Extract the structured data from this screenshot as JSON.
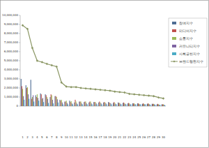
{
  "chart_data": {
    "type": "bar",
    "categories": [
      "1",
      "2",
      "3",
      "4",
      "5",
      "6",
      "7",
      "8",
      "9",
      "10",
      "11",
      "12",
      "13",
      "14",
      "15",
      "16",
      "17",
      "18",
      "19",
      "20",
      "21",
      "22",
      "23",
      "24",
      "25",
      "26",
      "27",
      "28",
      "29",
      "30"
    ],
    "series": [
      {
        "name": "참여지수",
        "type": "bar",
        "color": "#4f6d94",
        "values": [
          3000000,
          2300000,
          2900000,
          1200000,
          1400000,
          1300000,
          1000000,
          1100000,
          700000,
          500000,
          600000,
          400000,
          500000,
          450000,
          400000,
          450000,
          400000,
          400000,
          450000,
          350000,
          400000,
          350000,
          300000,
          300000,
          300000,
          250000,
          250000,
          250000,
          200000,
          200000
        ]
      },
      {
        "name": "미디어지수",
        "type": "bar",
        "color": "#c0504d",
        "values": [
          2200000,
          2000000,
          800000,
          1000000,
          1300000,
          1200000,
          1300000,
          1100000,
          600000,
          500000,
          450000,
          700000,
          500000,
          500000,
          500000,
          450000,
          500000,
          450000,
          400000,
          450000,
          350000,
          400000,
          350000,
          300000,
          300000,
          300000,
          300000,
          250000,
          250000,
          200000
        ]
      },
      {
        "name": "소통지수",
        "type": "bar",
        "color": "#9bbb59",
        "values": [
          1900000,
          2100000,
          1000000,
          1300000,
          800000,
          1000000,
          1200000,
          1000000,
          700000,
          600000,
          550000,
          500000,
          500000,
          500000,
          500000,
          450000,
          400000,
          400000,
          350000,
          350000,
          350000,
          300000,
          300000,
          300000,
          250000,
          250000,
          250000,
          250000,
          200000,
          200000
        ]
      },
      {
        "name": "커뮤니티지수",
        "type": "bar",
        "color": "#8064a2",
        "values": [
          1100000,
          1300000,
          1200000,
          900000,
          900000,
          800000,
          700000,
          750000,
          400000,
          350000,
          300000,
          300000,
          300000,
          300000,
          300000,
          300000,
          300000,
          300000,
          300000,
          250000,
          250000,
          250000,
          200000,
          200000,
          200000,
          200000,
          200000,
          200000,
          150000,
          150000
        ]
      },
      {
        "name": "사회공헌지수",
        "type": "bar",
        "color": "#4bacc6",
        "values": [
          700000,
          800000,
          500000,
          600000,
          450000,
          350000,
          300000,
          400000,
          200000,
          200000,
          200000,
          200000,
          200000,
          200000,
          200000,
          200000,
          200000,
          200000,
          200000,
          200000,
          200000,
          200000,
          200000,
          200000,
          200000,
          200000,
          150000,
          150000,
          150000,
          100000
        ]
      },
      {
        "name": "브랜드평판지수",
        "type": "line",
        "color": "#8a9663",
        "marker": "diamond",
        "values": [
          8900000,
          8500000,
          6400000,
          5000000,
          4850000,
          4650000,
          4500000,
          4350000,
          2600000,
          2150000,
          2100000,
          2100000,
          2000000,
          1950000,
          1900000,
          1850000,
          1800000,
          1750000,
          1700000,
          1600000,
          1550000,
          1500000,
          1350000,
          1300000,
          1250000,
          1200000,
          1150000,
          1100000,
          950000,
          850000
        ]
      }
    ],
    "ylim": [
      0,
      10000000
    ],
    "yticks": [
      0,
      {
        "value": 1000000,
        "label": "1,000,000"
      },
      {
        "value": 2000000,
        "label": "2,000,000"
      },
      {
        "value": 3000000,
        "label": "3,000,000"
      },
      {
        "value": 4000000,
        "label": "4,000,000"
      },
      {
        "value": 5000000,
        "label": "5,000,000"
      },
      {
        "value": 6000000,
        "label": "6,000,000"
      },
      {
        "value": 7000000,
        "label": "7,000,000"
      },
      {
        "value": 8000000,
        "label": "8,000,000"
      },
      {
        "value": 9000000,
        "label": "9,000,000"
      },
      {
        "value": 10000000,
        "label": "10,000,000"
      }
    ],
    "grid": false,
    "legend": "right"
  }
}
